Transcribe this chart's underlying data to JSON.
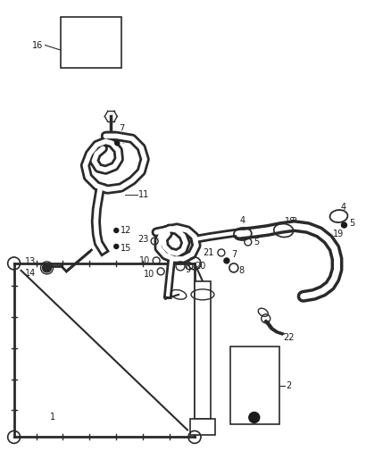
{
  "bg_color": "#ffffff",
  "fig_width": 4.38,
  "fig_height": 5.33,
  "dpi": 100,
  "line_color": "#2a2a2a",
  "label_color": "#1a1a1a",
  "label_fontsize": 7.0
}
